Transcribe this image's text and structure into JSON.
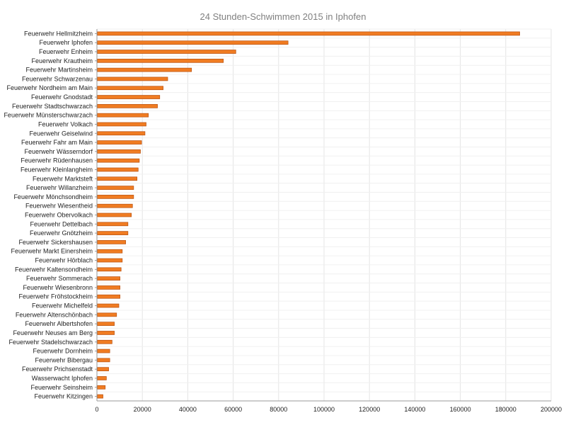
{
  "chart_data": {
    "type": "bar",
    "orientation": "horizontal",
    "title": "24 Stunden-Schwimmen 2015 in Iphofen",
    "xlabel": "",
    "ylabel": "",
    "xlim": [
      0,
      200000
    ],
    "xticks": [
      0,
      20000,
      40000,
      60000,
      80000,
      100000,
      120000,
      140000,
      160000,
      180000,
      200000
    ],
    "grid": true,
    "legend": "none",
    "bar_color": "#f07c22",
    "bar_edge_color": "#b8500f",
    "categories": [
      "Feuerwehr Hellmitzheim",
      "Feuerwehr Iphofen",
      "Feuerwehr Enheim",
      "Feuerwehr Krautheim",
      "Feuerwehr Martinsheim",
      "Feuerwehr Schwarzenau",
      "Feuerwehr Nordheim am Main",
      "Feuerwehr Gnodstadt",
      "Feuerwehr Stadtschwarzach",
      "Feuerwehr Münsterschwarzach",
      "Feuerwehr Volkach",
      "Feuerwehr Geiselwind",
      "Feuerwehr Fahr am Main",
      "Feuerwehr Wässerndorf",
      "Feuerwehr Rüdenhausen",
      "Feuerwehr Kleinlangheim",
      "Feuerwehr Marktsteft",
      "Feuerwehr Willanzheim",
      "Feuerwehr Mönchsondheim",
      "Feuerwehr Wiesentheid",
      "Feuerwehr Obervolkach",
      "Feuerwehr Dettelbach",
      "Feuerwehr Gnötzheim",
      "Feuerwehr Sickershausen",
      "Feuerwehr Markt Einersheim",
      "Feuerwehr Hörblach",
      "Feuerwehr Kaltensondheim",
      "Feuerwehr Sommerach",
      "Feuerwehr Wiesenbronn",
      "Feuerwehr Fröhstockheim",
      "Feuerwehr Michelfeld",
      "Feuerwehr Altenschönbach",
      "Feuerwehr Albertshofen",
      "Feuerwehr Neuses am Berg",
      "Feuerwehr Stadelschwarzach",
      "Feuerwehr Dornheim",
      "Feuerwehr Bibergau",
      "Feuerwehr Prichsenstadt",
      "Wasserwacht Iphofen",
      "Feuerwehr Seinsheim",
      "Feuerwehr Kitzingen"
    ],
    "values": [
      186000,
      84000,
      61000,
      55500,
      41500,
      31000,
      29000,
      27500,
      26500,
      22500,
      21500,
      21000,
      19500,
      19000,
      18500,
      18000,
      17500,
      16000,
      16000,
      15500,
      15000,
      13500,
      13500,
      12500,
      11000,
      11000,
      10500,
      10000,
      10000,
      10000,
      9500,
      8500,
      7500,
      7500,
      6500,
      5500,
      5500,
      5000,
      4000,
      3500,
      2500
    ]
  }
}
